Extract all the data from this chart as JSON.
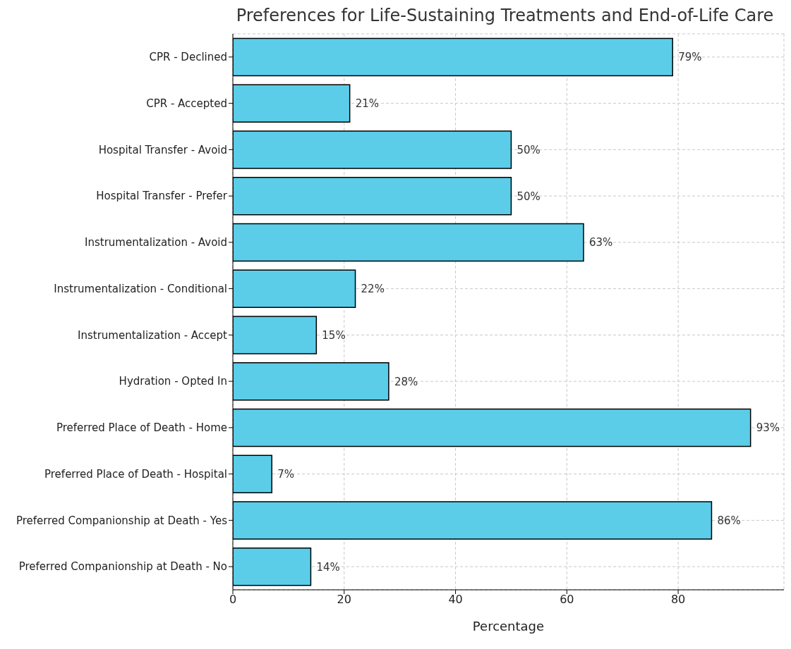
{
  "chart_data": {
    "type": "bar",
    "orientation": "horizontal",
    "title": "Preferences for Life-Sustaining Treatments and End-of-Life Care",
    "xlabel": "Percentage",
    "categories": [
      "CPR - Declined",
      "CPR - Accepted",
      "Hospital Transfer - Avoid",
      "Hospital Transfer - Prefer",
      "Instrumentalization - Avoid",
      "Instrumentalization - Conditional",
      "Instrumentalization - Accept",
      "Hydration - Opted In",
      "Preferred Place of Death - Home",
      "Preferred Place of Death - Hospital",
      "Preferred Companionship at Death - Yes",
      "Preferred Companionship at Death - No"
    ],
    "values": [
      79,
      21,
      50,
      50,
      63,
      22,
      15,
      28,
      93,
      7,
      86,
      14
    ],
    "value_labels": [
      "79%",
      "21%",
      "50%",
      "50%",
      "63%",
      "22%",
      "15%",
      "28%",
      "93%",
      "7%",
      "86%",
      "14%"
    ],
    "color": "#5bcde8",
    "xlim": [
      0,
      99
    ],
    "xticks": [
      0,
      20,
      40,
      60,
      80
    ],
    "grid": true
  }
}
